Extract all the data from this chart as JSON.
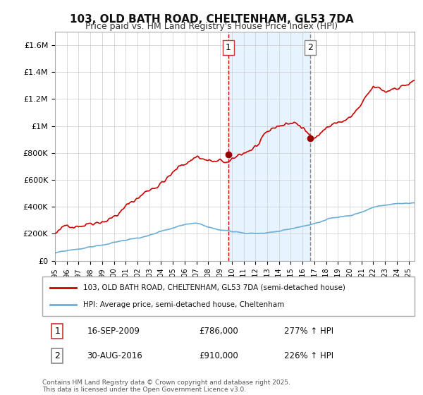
{
  "title": "103, OLD BATH ROAD, CHELTENHAM, GL53 7DA",
  "subtitle": "Price paid vs. HM Land Registry's House Price Index (HPI)",
  "footer": "Contains HM Land Registry data © Crown copyright and database right 2025.\nThis data is licensed under the Open Government Licence v3.0.",
  "legend_line1": "103, OLD BATH ROAD, CHELTENHAM, GL53 7DA (semi-detached house)",
  "legend_line2": "HPI: Average price, semi-detached house, Cheltenham",
  "sale1_label": "1",
  "sale1_date": "16-SEP-2009",
  "sale1_price": "£786,000",
  "sale1_hpi": "277% ↑ HPI",
  "sale2_label": "2",
  "sale2_date": "30-AUG-2016",
  "sale2_price": "£910,000",
  "sale2_hpi": "226% ↑ HPI",
  "x_start": 1995.0,
  "x_end": 2025.5,
  "y_min": 0,
  "y_max": 1700000,
  "sale1_x": 2009.71,
  "sale1_y": 786000,
  "sale2_x": 2016.66,
  "sale2_y": 910000,
  "hpi_color": "#6baed6",
  "price_color": "#cc0000",
  "shaded_x1": 2009.71,
  "shaded_x2": 2016.66,
  "bg_color": "#ffffff",
  "grid_color": "#cccccc",
  "axis_label_color": "#333333",
  "yticks": [
    0,
    200000,
    400000,
    600000,
    800000,
    1000000,
    1200000,
    1400000,
    1600000
  ],
  "ytick_labels": [
    "£0",
    "£200K",
    "£400K",
    "£600K",
    "£800K",
    "£1M",
    "£1.2M",
    "£1.4M",
    "£1.6M"
  ],
  "xtick_years": [
    1995,
    1996,
    1997,
    1998,
    1999,
    2000,
    2001,
    2002,
    2003,
    2004,
    2005,
    2006,
    2007,
    2008,
    2009,
    2010,
    2011,
    2012,
    2013,
    2014,
    2015,
    2016,
    2017,
    2018,
    2019,
    2020,
    2021,
    2022,
    2023,
    2024,
    2025
  ]
}
